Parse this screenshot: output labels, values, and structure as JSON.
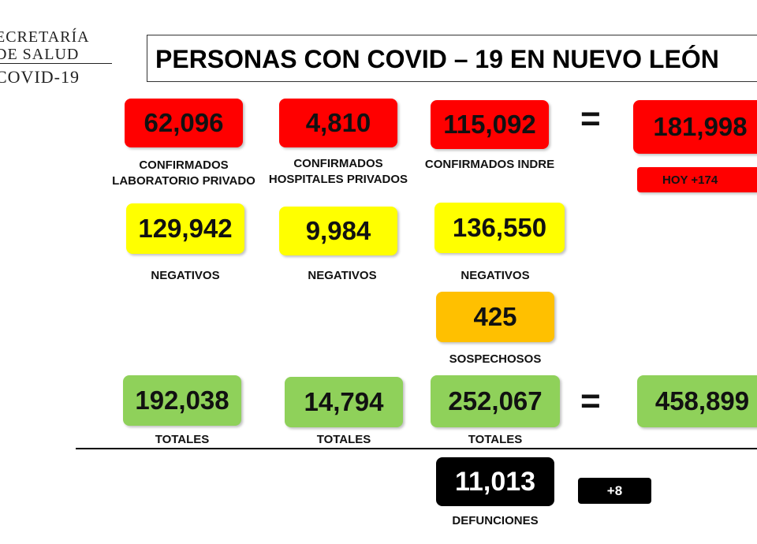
{
  "logo": {
    "line1": "ECRETARÍA",
    "line2": "DE SALUD",
    "line3": "COVID-19"
  },
  "title": "PERSONAS CON COVID – 19 EN NUEVO LEÓN",
  "confirmed": {
    "private_lab": {
      "value": "62,096",
      "label_line1": "CONFIRMADOS",
      "label_line2": "LABORATORIO PRIVADO"
    },
    "private_hospitals": {
      "value": "4,810",
      "label_line1": "CONFIRMADOS",
      "label_line2": "HOSPITALES PRIVADOS"
    },
    "indre": {
      "value": "115,092",
      "label": "CONFIRMADOS INDRE"
    },
    "equals": "=",
    "total": {
      "value": "181,998",
      "today": "HOY +174"
    }
  },
  "negatives": {
    "private_lab": {
      "value": "129,942",
      "label": "NEGATIVOS"
    },
    "private_hospitals": {
      "value": "9,984",
      "label": "NEGATIVOS"
    },
    "indre": {
      "value": "136,550",
      "label": "NEGATIVOS"
    }
  },
  "suspects": {
    "value": "425",
    "label": "SOSPECHOSOS"
  },
  "totals": {
    "private_lab": {
      "value": "192,038",
      "label": "TOTALES"
    },
    "private_hospitals": {
      "value": "14,794",
      "label": "TOTALES"
    },
    "indre": {
      "value": "252,067",
      "label": "TOTALES"
    },
    "equals": "=",
    "grand_total": {
      "value": "458,899"
    }
  },
  "deaths": {
    "value": "11,013",
    "label": "DEFUNCIONES",
    "today": "+8"
  },
  "colors": {
    "red": "#ff0000",
    "yellow": "#ffff00",
    "orange": "#ffc000",
    "green": "#8fd15a",
    "black": "#000000"
  }
}
